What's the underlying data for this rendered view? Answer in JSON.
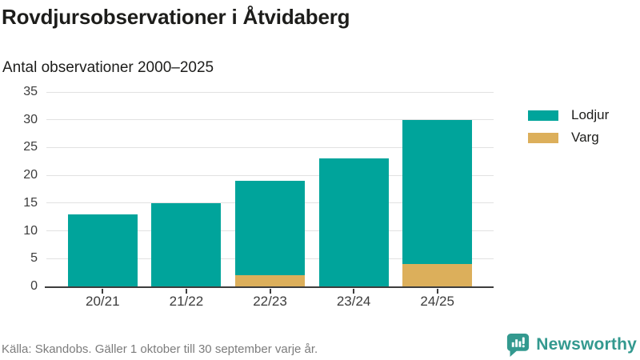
{
  "header": {
    "title": "Rovdjursobservationer i Åtvidaberg",
    "subtitle": "Antal observationer 2000–2025"
  },
  "chart_data": {
    "type": "bar",
    "stacked": true,
    "title": "Rovdjursobservationer i Åtvidaberg",
    "subtitle": "Antal observationer 2000–2025",
    "categories": [
      "20/21",
      "21/22",
      "22/23",
      "23/24",
      "24/25"
    ],
    "series": [
      {
        "name": "Varg",
        "color": "#DCAF5B",
        "values": [
          0,
          0,
          2,
          0,
          4
        ]
      },
      {
        "name": "Lodjur",
        "color": "#00A49B",
        "values": [
          13,
          15,
          17,
          23,
          26
        ]
      }
    ],
    "totals": [
      13,
      15,
      19,
      23,
      30
    ],
    "xlabel": "",
    "ylabel": "Antal observationer",
    "ylim": [
      0,
      35
    ],
    "yticks": [
      0,
      5,
      10,
      15,
      20,
      25,
      30,
      35
    ],
    "grid": true,
    "legend": {
      "position": "right",
      "entries": [
        {
          "label": "Lodjur",
          "color": "#00A49B"
        },
        {
          "label": "Varg",
          "color": "#DCAF5B"
        }
      ]
    }
  },
  "footer": {
    "source_note": "Källa: Skandobs. Gäller 1 oktober till 30 september varje år.",
    "brand": "Newsworthy"
  },
  "colors": {
    "lodjur": "#00A49B",
    "varg": "#DCAF5B",
    "axis": "#3d3d3d",
    "gridline": "#e2e2e2",
    "text": "#1d1d1b",
    "muted_text": "#7c7c7c",
    "brand_teal": "#33998f"
  }
}
